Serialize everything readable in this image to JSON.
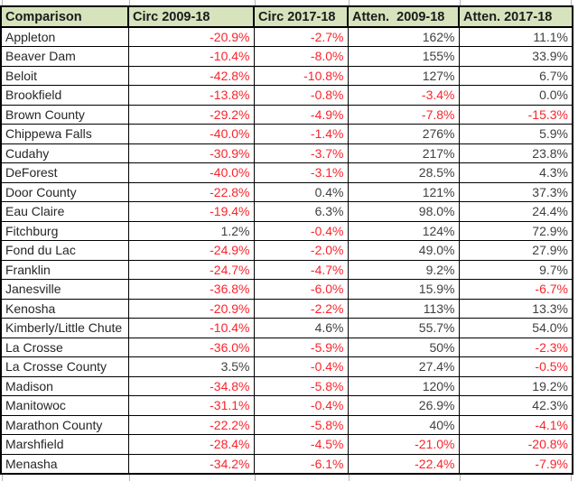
{
  "colors": {
    "header_bg": "#d6e3bc",
    "border": "#000000",
    "partial_gridline": "#b7b7b7",
    "negative_value": "#f9242c",
    "positive_value": "#3f3f3f"
  },
  "table": {
    "columns": [
      "Comparison",
      "Circ 2009-18",
      "Circ 2017-18",
      "Atten.  2009-18",
      "Atten. 2017-18"
    ],
    "rows": [
      {
        "name": "Appleton",
        "values": [
          "-20.9%",
          "-2.7%",
          "162%",
          "11.1%"
        ]
      },
      {
        "name": "Beaver Dam",
        "values": [
          "-10.4%",
          "-8.0%",
          "155%",
          "33.9%"
        ]
      },
      {
        "name": "Beloit",
        "values": [
          "-42.8%",
          "-10.8%",
          "127%",
          "6.7%"
        ]
      },
      {
        "name": "Brookfield",
        "values": [
          "-13.8%",
          "-0.8%",
          "-3.4%",
          "0.0%"
        ]
      },
      {
        "name": "Brown County",
        "values": [
          "-29.2%",
          "-4.9%",
          "-7.8%",
          "-15.3%"
        ]
      },
      {
        "name": "Chippewa Falls",
        "values": [
          "-40.0%",
          "-1.4%",
          "276%",
          "5.9%"
        ]
      },
      {
        "name": "Cudahy",
        "values": [
          "-30.9%",
          "-3.7%",
          "217%",
          "23.8%"
        ]
      },
      {
        "name": "DeForest",
        "values": [
          "-40.0%",
          "-3.1%",
          "28.5%",
          "4.3%"
        ]
      },
      {
        "name": "Door County",
        "values": [
          "-22.8%",
          "0.4%",
          "121%",
          "37.3%"
        ]
      },
      {
        "name": "Eau Claire",
        "values": [
          "-19.4%",
          "6.3%",
          "98.0%",
          "24.4%"
        ]
      },
      {
        "name": "Fitchburg",
        "values": [
          "1.2%",
          "-0.4%",
          "124%",
          "72.9%"
        ]
      },
      {
        "name": "Fond du Lac",
        "values": [
          "-24.9%",
          "-2.0%",
          "49.0%",
          "27.9%"
        ]
      },
      {
        "name": "Franklin",
        "values": [
          "-24.7%",
          "-4.7%",
          "9.2%",
          "9.7%"
        ]
      },
      {
        "name": "Janesville",
        "values": [
          "-36.8%",
          "-6.0%",
          "15.9%",
          "-6.7%"
        ]
      },
      {
        "name": "Kenosha",
        "values": [
          "-20.9%",
          "-2.2%",
          "113%",
          "13.3%"
        ]
      },
      {
        "name": "Kimberly/Little Chute",
        "values": [
          "-10.4%",
          "4.6%",
          "55.7%",
          "54.0%"
        ]
      },
      {
        "name": "La Crosse",
        "values": [
          "-36.0%",
          "-5.9%",
          "50%",
          "-2.3%"
        ]
      },
      {
        "name": "La Crosse County",
        "values": [
          "3.5%",
          "-0.4%",
          "27.4%",
          "-0.5%"
        ]
      },
      {
        "name": "Madison",
        "values": [
          "-34.8%",
          "-5.8%",
          "120%",
          "19.2%"
        ]
      },
      {
        "name": "Manitowoc",
        "values": [
          "-31.1%",
          "-0.4%",
          "26.9%",
          "42.3%"
        ]
      },
      {
        "name": "Marathon County",
        "values": [
          "-22.2%",
          "-5.8%",
          "40%",
          "-4.1%"
        ]
      },
      {
        "name": "Marshfield",
        "values": [
          "-28.4%",
          "-4.5%",
          "-21.0%",
          "-20.8%"
        ]
      },
      {
        "name": "Menasha",
        "values": [
          "-34.2%",
          "-6.1%",
          "-22.4%",
          "-7.9%"
        ]
      }
    ],
    "column_x_boundaries": [
      2,
      143,
      282,
      386,
      509,
      632
    ]
  }
}
